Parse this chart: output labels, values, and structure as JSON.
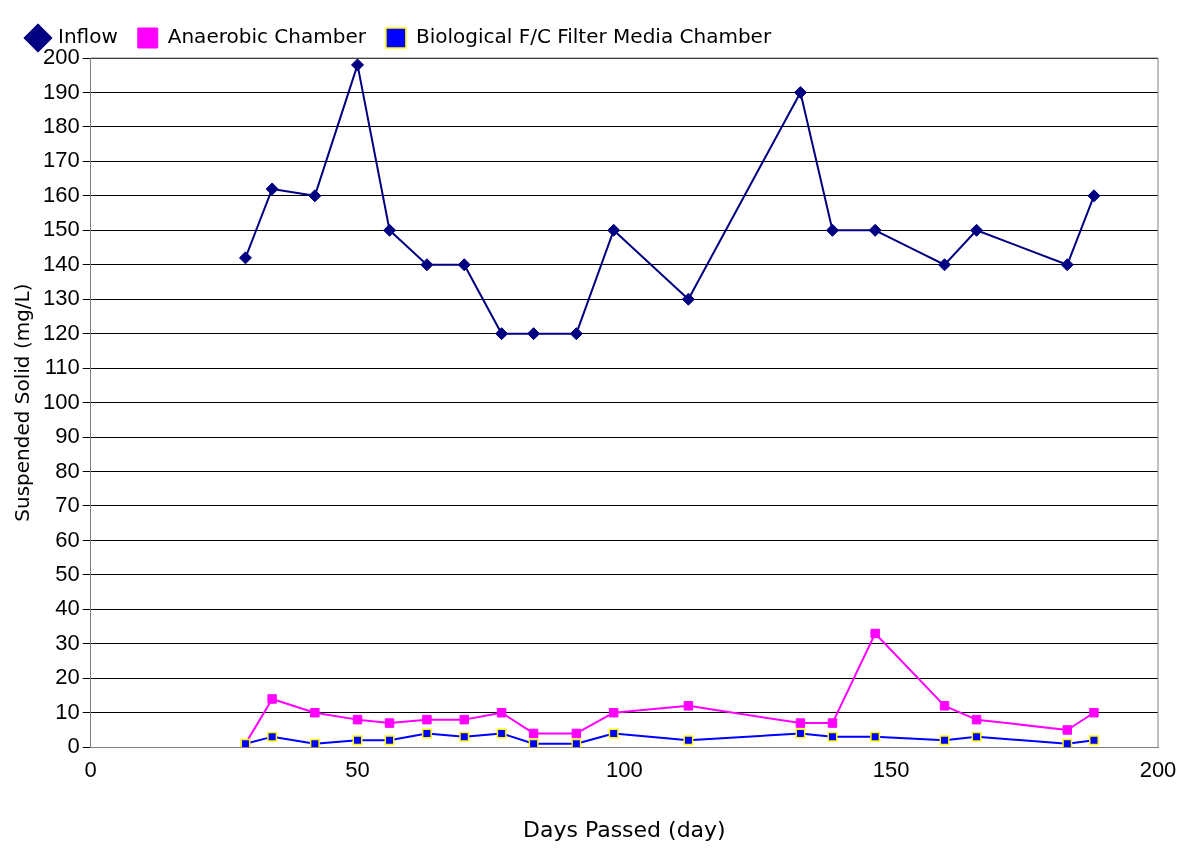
{
  "chart_data": {
    "type": "line",
    "xlabel": "Days Passed (day)",
    "ylabel": "Suspended Solid (mg/L)",
    "x": [
      29,
      34,
      42,
      50,
      56,
      63,
      70,
      77,
      83,
      91,
      98,
      112,
      133,
      139,
      147,
      160,
      166,
      183,
      188
    ],
    "series": [
      {
        "name": "Inflow",
        "color": "#000080",
        "marker": "diamond",
        "values": [
          142,
          162,
          160,
          198,
          150,
          140,
          140,
          120,
          120,
          120,
          150,
          130,
          190,
          150,
          150,
          140,
          150,
          140,
          160
        ]
      },
      {
        "name": "Anaerobic Chamber",
        "color": "#ff00ff",
        "marker": "square",
        "values": [
          1,
          14,
          10,
          8,
          7,
          8,
          8,
          10,
          4,
          4,
          10,
          12,
          7,
          7,
          33,
          12,
          8,
          5,
          10
        ]
      },
      {
        "name": "Biological F/C Filter Media Chamber",
        "color": "#0000ff",
        "marker": "square",
        "values": [
          1,
          3,
          1,
          2,
          2,
          4,
          3,
          4,
          1,
          1,
          4,
          2,
          4,
          3,
          3,
          2,
          3,
          1,
          2
        ]
      }
    ],
    "xlim": [
      0,
      200
    ],
    "xticks": [
      0,
      50,
      100,
      150,
      200
    ],
    "ylim": [
      0,
      200
    ],
    "yticks": [
      0,
      10,
      20,
      30,
      40,
      50,
      60,
      70,
      80,
      90,
      100,
      110,
      120,
      130,
      140,
      150,
      160,
      170,
      180,
      190,
      200
    ],
    "grid": "y",
    "legend": "top"
  }
}
